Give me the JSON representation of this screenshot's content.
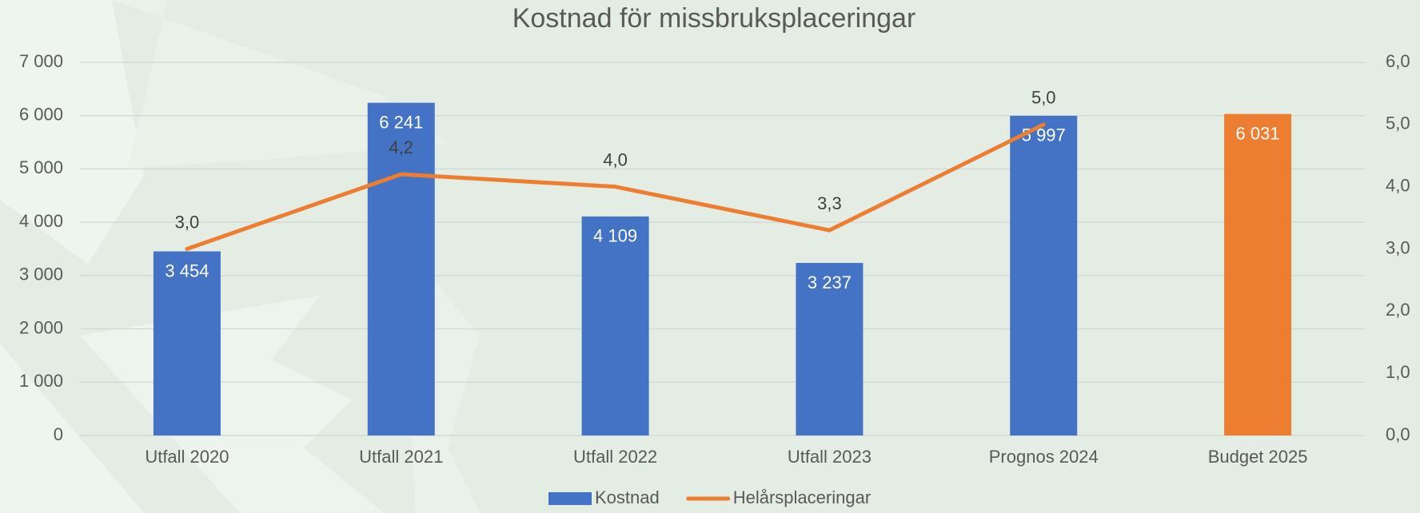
{
  "chart_data": {
    "type": "bar-line",
    "title": "Kostnad för missbruksplaceringar",
    "categories": [
      "Utfall 2020",
      "Utfall 2021",
      "Utfall 2022",
      "Utfall 2023",
      "Prognos 2024",
      "Budget 2025"
    ],
    "series": [
      {
        "name": "Kostnad",
        "type": "bar",
        "color": "#4472c4",
        "colors": [
          "#4472c4",
          "#4472c4",
          "#4472c4",
          "#4472c4",
          "#4472c4",
          "#ed7d31"
        ],
        "values": [
          3454,
          6241,
          4109,
          3237,
          5997,
          6031
        ],
        "value_labels": [
          "3 454",
          "6 241",
          "4 109",
          "3 237",
          "5 997",
          "6 031"
        ]
      },
      {
        "name": "Helårsplaceringar",
        "type": "line",
        "axis": "y2",
        "color": "#ed7d31",
        "values": [
          3.0,
          4.2,
          4.0,
          3.3,
          5.0,
          null
        ],
        "value_labels": [
          "3,0",
          "4,2",
          "4,0",
          "3,3",
          "5,0",
          null
        ]
      }
    ],
    "ylim": [
      0,
      7000
    ],
    "yticks": [
      0,
      {
        "value": 1000,
        "label": "1 000"
      },
      {
        "value": 2000,
        "label": "2 000"
      },
      {
        "value": 3000,
        "label": "3 000"
      },
      {
        "value": 4000,
        "label": "4 000"
      },
      {
        "value": 5000,
        "label": "5 000"
      },
      {
        "value": 6000,
        "label": "6 000"
      },
      {
        "value": 7000,
        "label": "7 000"
      }
    ],
    "y2lim": [
      0,
      6
    ],
    "y2ticks": [
      {
        "value": 0,
        "label": "0,0"
      },
      {
        "value": 1,
        "label": "1,0"
      },
      {
        "value": 2,
        "label": "2,0"
      },
      {
        "value": 3,
        "label": "3,0"
      },
      {
        "value": 4,
        "label": "4,0"
      },
      {
        "value": 5,
        "label": "5,0"
      },
      {
        "value": 6,
        "label": "6,0"
      }
    ],
    "grid": true,
    "legend": "bottom"
  }
}
